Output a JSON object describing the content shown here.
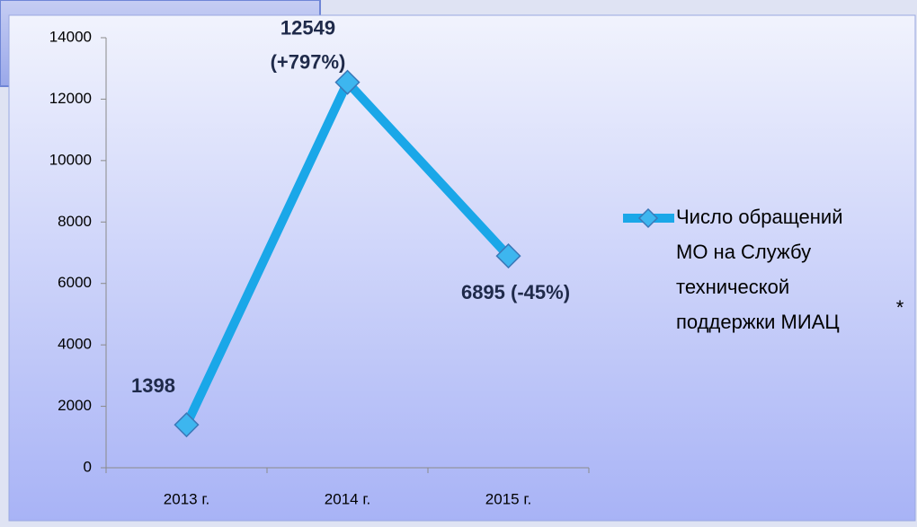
{
  "chart_data": {
    "type": "line",
    "categories": [
      "2013 г.",
      "2014 г.",
      "2015 г."
    ],
    "series": [
      {
        "name": "Число обращений МО на Службу технической поддержки МИАЦ",
        "color": "#1aa7e8",
        "values": [
          1398,
          12549,
          6895
        ],
        "value_labels": [
          "1398",
          "12549 (+797%)",
          "6895 (-45%)"
        ]
      }
    ],
    "ylim": [
      0,
      14000
    ],
    "yticks": [
      0,
      2000,
      4000,
      6000,
      8000,
      10000,
      12000,
      14000
    ],
    "legend": "right",
    "annotations": [
      "*"
    ]
  }
}
